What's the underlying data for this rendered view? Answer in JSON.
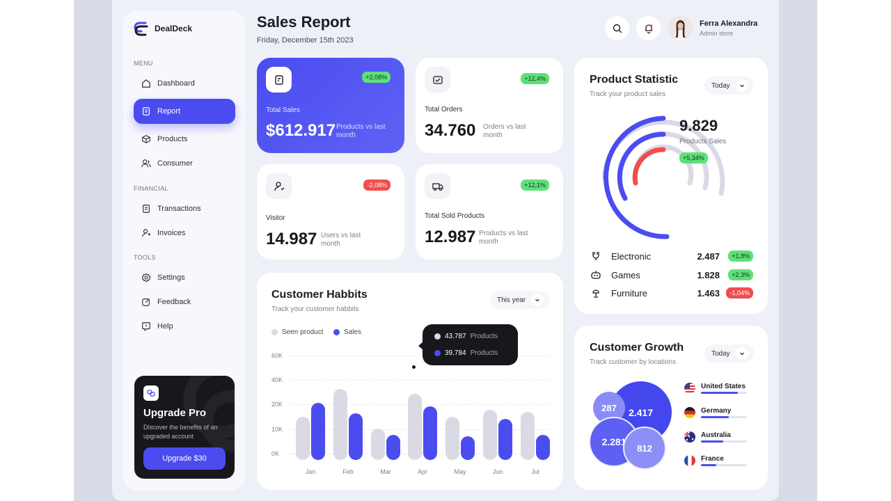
{
  "brand": {
    "name": "DealDeck",
    "accent": "#4b4cf0"
  },
  "sidebar": {
    "menu_label": "MENU",
    "financial_label": "FINANCIAL",
    "tools_label": "TOOLS",
    "items": [
      {
        "label": "Dashboard",
        "icon": "home-icon"
      },
      {
        "label": "Report",
        "icon": "report-icon",
        "active": true
      },
      {
        "label": "Products",
        "icon": "box-icon"
      },
      {
        "label": "Consumer",
        "icon": "users-icon"
      },
      {
        "label": "Transactions",
        "icon": "receipt-icon"
      },
      {
        "label": "Invoices",
        "icon": "invoice-icon"
      },
      {
        "label": "Settings",
        "icon": "gear-icon"
      },
      {
        "label": "Feedback",
        "icon": "edit-icon"
      },
      {
        "label": "Help",
        "icon": "help-icon"
      }
    ],
    "upgrade": {
      "title": "Upgrade Pro",
      "desc": "Discover the benefits of an upgraded account",
      "button": "Upgrade $30"
    }
  },
  "header": {
    "title": "Sales Report",
    "date": "Friday, December 15th 2023",
    "user_name": "Ferra Alexandra",
    "user_role": "Admin store"
  },
  "stats": [
    {
      "label": "Total Sales",
      "value": "$612.917",
      "sub": "Products vs last month",
      "badge": "+2,08%",
      "positive": true
    },
    {
      "label": "Total Orders",
      "value": "34.760",
      "sub": "Orders vs last month",
      "badge": "+12,4%",
      "positive": true
    },
    {
      "label": "Visitor",
      "value": "14.987",
      "sub": "Users vs last month",
      "badge": "-2,08%",
      "positive": false
    },
    {
      "label": "Total Sold Products",
      "value": "12.987",
      "sub": "Products vs last month",
      "badge": "+12,1%",
      "positive": true
    }
  ],
  "habits": {
    "title": "Customer Habbits",
    "subtitle": "Track your customer habbits",
    "period": "This year",
    "tooltip": [
      {
        "value": "43.787",
        "unit": "Products"
      },
      {
        "value": "39.784",
        "unit": "Products"
      }
    ]
  },
  "chart_data": {
    "type": "bar",
    "categories": [
      "Jan",
      "Feb",
      "Mar",
      "Apr",
      "May",
      "Jun",
      "Jul"
    ],
    "series": [
      {
        "name": "Seen product",
        "color": "#d9dae4",
        "values": [
          25000,
          41000,
          18000,
          38000,
          25000,
          29000,
          27500
        ]
      },
      {
        "name": "Sales",
        "color": "#4b4cf0",
        "values": [
          33000,
          27000,
          14500,
          31000,
          13500,
          23500,
          14500
        ]
      }
    ],
    "yticks": [
      "60K",
      "40K",
      "20K",
      "10K",
      "0K"
    ],
    "ylim": [
      0,
      60000
    ],
    "grid": true,
    "legend": "top-left"
  },
  "product_stat": {
    "title": "Product Statistic",
    "subtitle": "Track your product sales",
    "period": "Today",
    "total": "9.829",
    "total_label": "Products Sales",
    "total_badge": "+5,34%",
    "items": [
      {
        "name": "Electronic",
        "value": "2.487",
        "badge": "+1,8%",
        "positive": true,
        "icon": "chip-icon"
      },
      {
        "name": "Games",
        "value": "1.828",
        "badge": "+2,3%",
        "positive": true,
        "icon": "gamepad-icon"
      },
      {
        "name": "Furniture",
        "value": "1.463",
        "badge": "-1,04%",
        "positive": false,
        "icon": "lamp-icon"
      }
    ]
  },
  "growth": {
    "title": "Customer Growth",
    "subtitle": "Track customer by locations",
    "period": "Today",
    "bubbles": [
      "2.417",
      "287",
      "2.281",
      "812"
    ],
    "countries": [
      {
        "name": "United States",
        "fill": 0.8,
        "flag": "us-flag-icon"
      },
      {
        "name": "Germany",
        "fill": 0.6,
        "flag": "germany-flag-icon"
      },
      {
        "name": "Australia",
        "fill": 0.48,
        "flag": "australia-flag-icon"
      },
      {
        "name": "France",
        "fill": 0.33,
        "flag": "france-flag-icon"
      }
    ]
  }
}
